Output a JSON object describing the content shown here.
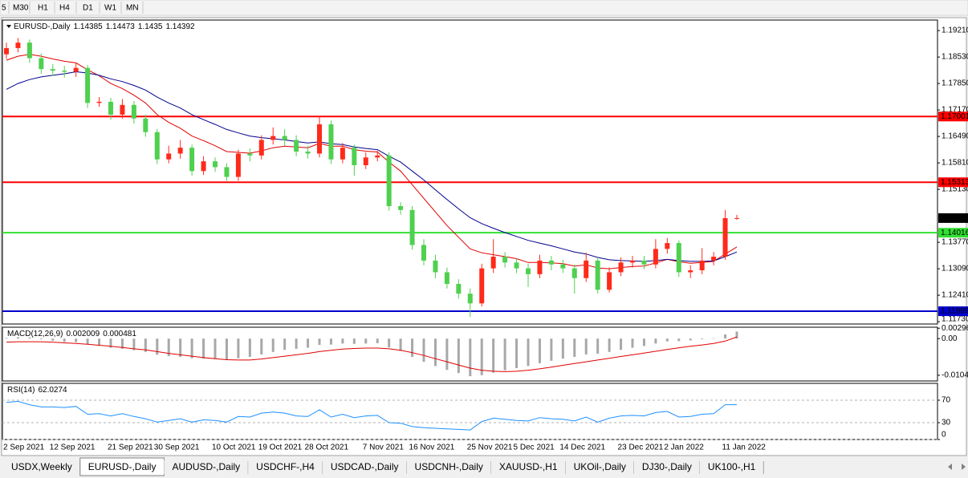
{
  "toolbar": {
    "timeframes": [
      "5",
      "M30",
      "H1",
      "H4",
      "D1",
      "W1",
      "MN"
    ]
  },
  "chart_data": [
    {
      "type": "candlestick",
      "title": "EURUSD-,Daily",
      "up_color": "#ff2a1a",
      "down_color": "#4fd04f",
      "categories": [
        "2 Sep 2021",
        null,
        null,
        null,
        "12 Sep 2021",
        null,
        null,
        null,
        null,
        "21 Sep 2021",
        null,
        null,
        null,
        "30 Sep 2021",
        null,
        null,
        null,
        null,
        "10 Oct 2021",
        null,
        null,
        null,
        "19 Oct 2021",
        null,
        null,
        null,
        "28 Oct 2021",
        null,
        null,
        null,
        null,
        "7 Nov 2021",
        null,
        null,
        null,
        "16 Nov 2021",
        null,
        null,
        null,
        null,
        "25 Nov 2021",
        null,
        null,
        null,
        "5 Dec 2021",
        null,
        null,
        null,
        "14 Dec 2021",
        null,
        null,
        null,
        null,
        "23 Dec 2021",
        null,
        null,
        null,
        "2 Jan 2022",
        null,
        null,
        null,
        null,
        "11 Jan 2022",
        null
      ],
      "open": [
        1.186,
        1.1876,
        1.189,
        1.185,
        1.1822,
        1.1818,
        1.1815,
        1.1825,
        1.1735,
        1.1738,
        1.1705,
        1.173,
        1.1695,
        1.166,
        1.159,
        1.1605,
        1.162,
        1.156,
        1.1585,
        1.157,
        1.1545,
        1.1605,
        1.16,
        1.164,
        1.165,
        1.164,
        1.161,
        1.1605,
        1.168,
        1.159,
        1.162,
        1.1575,
        1.1595,
        1.16,
        1.147,
        1.146,
        1.137,
        1.133,
        1.13,
        1.127,
        1.1245,
        1.122,
        1.131,
        1.134,
        1.1325,
        1.131,
        1.1295,
        1.133,
        1.132,
        1.131,
        1.1285,
        1.133,
        1.1255,
        1.13,
        1.1325,
        1.133,
        1.132,
        1.136,
        1.1375,
        1.13,
        1.1305,
        1.133,
        1.134,
        1.14385
      ],
      "high": [
        1.189,
        1.1902,
        1.1898,
        1.1862,
        1.1835,
        1.183,
        1.1838,
        1.1832,
        1.175,
        1.1748,
        1.1745,
        1.174,
        1.1705,
        1.1668,
        1.1625,
        1.164,
        1.1628,
        1.1598,
        1.1595,
        1.158,
        1.1615,
        1.1618,
        1.1652,
        1.1672,
        1.1668,
        1.1652,
        1.1625,
        1.1702,
        1.169,
        1.1632,
        1.1628,
        1.1608,
        1.1612,
        1.1608,
        1.148,
        1.147,
        1.1385,
        1.1345,
        1.1312,
        1.1282,
        1.1258,
        1.1322,
        1.1385,
        1.1352,
        1.1335,
        1.1322,
        1.1345,
        1.1342,
        1.1332,
        1.132,
        1.135,
        1.1338,
        1.1312,
        1.1338,
        1.1342,
        1.1342,
        1.1385,
        1.1388,
        1.1382,
        1.1318,
        1.1362,
        1.1352,
        1.146,
        1.14473
      ],
      "low": [
        1.1848,
        1.1865,
        1.1838,
        1.181,
        1.1805,
        1.18,
        1.1802,
        1.1722,
        1.1725,
        1.1692,
        1.1695,
        1.1682,
        1.1648,
        1.1578,
        1.158,
        1.1592,
        1.1548,
        1.155,
        1.1558,
        1.1535,
        1.1535,
        1.1585,
        1.159,
        1.1628,
        1.1625,
        1.1598,
        1.1592,
        1.1595,
        1.1578,
        1.158,
        1.1548,
        1.1565,
        1.1585,
        1.1458,
        1.1448,
        1.1358,
        1.1318,
        1.1285,
        1.1258,
        1.1232,
        1.1185,
        1.1212,
        1.1298,
        1.1312,
        1.1298,
        1.1262,
        1.1285,
        1.1305,
        1.1298,
        1.1245,
        1.1275,
        1.1245,
        1.1248,
        1.129,
        1.1312,
        1.1308,
        1.131,
        1.1348,
        1.1288,
        1.1285,
        1.1295,
        1.1318,
        1.1332,
        1.1435
      ],
      "close": [
        1.1876,
        1.189,
        1.185,
        1.1822,
        1.1818,
        1.1815,
        1.1825,
        1.1735,
        1.1738,
        1.1705,
        1.173,
        1.1695,
        1.166,
        1.159,
        1.1605,
        1.162,
        1.156,
        1.1585,
        1.157,
        1.1545,
        1.1605,
        1.16,
        1.164,
        1.165,
        1.164,
        1.161,
        1.1605,
        1.168,
        1.159,
        1.162,
        1.1575,
        1.1595,
        1.16,
        1.147,
        1.146,
        1.137,
        1.133,
        1.13,
        1.127,
        1.1245,
        1.122,
        1.131,
        1.134,
        1.1325,
        1.131,
        1.1295,
        1.133,
        1.132,
        1.131,
        1.1285,
        1.133,
        1.1255,
        1.13,
        1.1325,
        1.133,
        1.132,
        1.136,
        1.1375,
        1.13,
        1.1305,
        1.133,
        1.134,
        1.1439,
        1.14392
      ],
      "series": [
        {
          "type": "line",
          "color": "#e00000",
          "values": [
            1.1845,
            1.1855,
            1.186,
            1.1855,
            1.1848,
            1.1842,
            1.1838,
            1.182,
            1.1805,
            1.1785,
            1.1772,
            1.1755,
            1.1735,
            1.1705,
            1.1685,
            1.167,
            1.165,
            1.1638,
            1.1625,
            1.161,
            1.1608,
            1.1606,
            1.1612,
            1.162,
            1.1624,
            1.1622,
            1.162,
            1.1631,
            1.1624,
            1.1624,
            1.1615,
            1.1611,
            1.1609,
            1.1583,
            1.156,
            1.1525,
            1.149,
            1.1455,
            1.142,
            1.139,
            1.136,
            1.135,
            1.1345,
            1.134,
            1.1335,
            1.1325,
            1.1325,
            1.1324,
            1.1322,
            1.1316,
            1.1319,
            1.1311,
            1.1309,
            1.1312,
            1.1315,
            1.1316,
            1.1324,
            1.1333,
            1.1327,
            1.1323,
            1.1325,
            1.1328,
            1.1347,
            1.1365
          ]
        },
        {
          "type": "line",
          "color": "#00008b",
          "values": [
            1.177,
            1.1785,
            1.1795,
            1.1802,
            1.1806,
            1.181,
            1.1815,
            1.1812,
            1.1806,
            1.1797,
            1.179,
            1.178,
            1.1768,
            1.175,
            1.1735,
            1.1722,
            1.1705,
            1.1692,
            1.168,
            1.1667,
            1.1658,
            1.165,
            1.1646,
            1.1643,
            1.164,
            1.1636,
            1.1632,
            1.1635,
            1.163,
            1.1628,
            1.1622,
            1.1618,
            1.1615,
            1.1598,
            1.1583,
            1.156,
            1.1537,
            1.1512,
            1.1487,
            1.1463,
            1.144,
            1.1425,
            1.1413,
            1.1402,
            1.1392,
            1.1382,
            1.1375,
            1.1368,
            1.136,
            1.1352,
            1.1347,
            1.1338,
            1.1332,
            1.133,
            1.1329,
            1.1328,
            1.133,
            1.1333,
            1.133,
            1.1328,
            1.1328,
            1.1329,
            1.134,
            1.1352
          ]
        }
      ],
      "levels": [
        {
          "value": 1.17001,
          "color": "#ff0000"
        },
        {
          "value": 1.15313,
          "color": "#ff0000"
        },
        {
          "value": 1.14016,
          "color": "#32e032"
        },
        {
          "value": 1.11999,
          "color": "#0000cd"
        }
      ],
      "ylim": [
        1.1167,
        1.1948
      ],
      "yticks": [
        {
          "value": 1.1921,
          "label": "1.19210"
        },
        {
          "value": 1.1853,
          "label": "1.18530"
        },
        {
          "value": 1.1785,
          "label": "1.17850"
        },
        {
          "value": 1.1717,
          "label": "1.17170"
        },
        {
          "value": 1.1649,
          "label": "1.16490"
        },
        {
          "value": 1.1581,
          "label": "1.15810"
        },
        {
          "value": 1.1513,
          "label": "1.15130"
        },
        {
          "value": 1.1377,
          "label": "1.13770"
        },
        {
          "value": 1.1309,
          "label": "1.13090"
        },
        {
          "value": 1.1241,
          "label": "1.12410"
        },
        {
          "value": 1.1173,
          "label": "1.11730"
        }
      ]
    },
    {
      "type": "macd",
      "title": "MACD(12,26,9)",
      "series": [
        {
          "type": "bar",
          "color": "#a8a8a8",
          "values": [
            0.0002,
            0.0004,
            0.0003,
            -0.0002,
            -0.0006,
            -0.0009,
            -0.001,
            -0.0016,
            -0.002,
            -0.0026,
            -0.0029,
            -0.0033,
            -0.0038,
            -0.0046,
            -0.005,
            -0.0052,
            -0.0056,
            -0.0057,
            -0.0058,
            -0.006,
            -0.0056,
            -0.0052,
            -0.0045,
            -0.0038,
            -0.0032,
            -0.0029,
            -0.0026,
            -0.0018,
            -0.0017,
            -0.0014,
            -0.0015,
            -0.0014,
            -0.0013,
            -0.0025,
            -0.0035,
            -0.0052,
            -0.0066,
            -0.0078,
            -0.0089,
            -0.0098,
            -0.0107,
            -0.0104,
            -0.0097,
            -0.009,
            -0.0084,
            -0.0078,
            -0.007,
            -0.0063,
            -0.0057,
            -0.0052,
            -0.0045,
            -0.0043,
            -0.0038,
            -0.0032,
            -0.0026,
            -0.0021,
            -0.0014,
            -0.0008,
            -0.0007,
            -0.0005,
            -0.0002,
            0.0001,
            0.0012,
            0.002009
          ]
        },
        {
          "type": "line",
          "color": "#e00000",
          "values": [
            -0.001,
            -0.0009,
            -0.0009,
            -0.0009,
            -0.001,
            -0.0012,
            -0.0014,
            -0.0016,
            -0.0019,
            -0.0022,
            -0.0025,
            -0.0029,
            -0.0032,
            -0.0037,
            -0.0042,
            -0.0046,
            -0.005,
            -0.0054,
            -0.0057,
            -0.006,
            -0.0061,
            -0.0061,
            -0.0058,
            -0.0054,
            -0.005,
            -0.0046,
            -0.0042,
            -0.0037,
            -0.0033,
            -0.003,
            -0.0028,
            -0.0027,
            -0.0027,
            -0.0029,
            -0.0033,
            -0.004,
            -0.0048,
            -0.0057,
            -0.0066,
            -0.0075,
            -0.0084,
            -0.009,
            -0.0093,
            -0.0094,
            -0.0093,
            -0.009,
            -0.0086,
            -0.0081,
            -0.0076,
            -0.0071,
            -0.0066,
            -0.0061,
            -0.0056,
            -0.0051,
            -0.0046,
            -0.0041,
            -0.0036,
            -0.0031,
            -0.0026,
            -0.0022,
            -0.0018,
            -0.0014,
            -0.0007,
            0.000481
          ]
        }
      ],
      "ylim": [
        -0.01205,
        0.00324
      ],
      "yticks": [
        {
          "value": 0.00296,
          "label": "0.002960"
        },
        {
          "value": 0,
          "label": "0.00"
        },
        -0.010425
      ]
    },
    {
      "type": "line",
      "title": "RSI(14)",
      "grid": "dashed",
      "series": [
        {
          "type": "line",
          "color": "#1e90ff",
          "values": [
            66,
            68,
            62,
            58,
            58,
            57,
            59,
            45,
            46,
            42,
            46,
            41,
            37,
            31,
            34,
            37,
            31,
            35,
            34,
            31,
            41,
            40,
            47,
            49,
            47,
            42,
            41,
            53,
            40,
            45,
            39,
            42,
            43,
            30,
            29,
            23,
            21,
            20,
            19,
            18,
            17,
            32,
            38,
            36,
            34,
            33,
            39,
            37,
            36,
            33,
            40,
            31,
            38,
            42,
            43,
            42,
            48,
            50,
            40,
            41,
            45,
            46,
            62,
            62.0274
          ]
        }
      ],
      "ylim": [
        0,
        100
      ],
      "yticks": [
        70,
        30,
        0
      ]
    }
  ],
  "tabs": [
    "USDX,Weekly",
    "EURUSD-,Daily",
    "AUDUSD-,Daily",
    "USDCHF-,H4",
    "USDCAD-,Daily",
    "USDCNH-,Daily",
    "XAUUSD-,H1",
    "UKOil-,Daily",
    "DJ30-,Daily",
    "UK100-,H1"
  ],
  "active_tab": 1
}
